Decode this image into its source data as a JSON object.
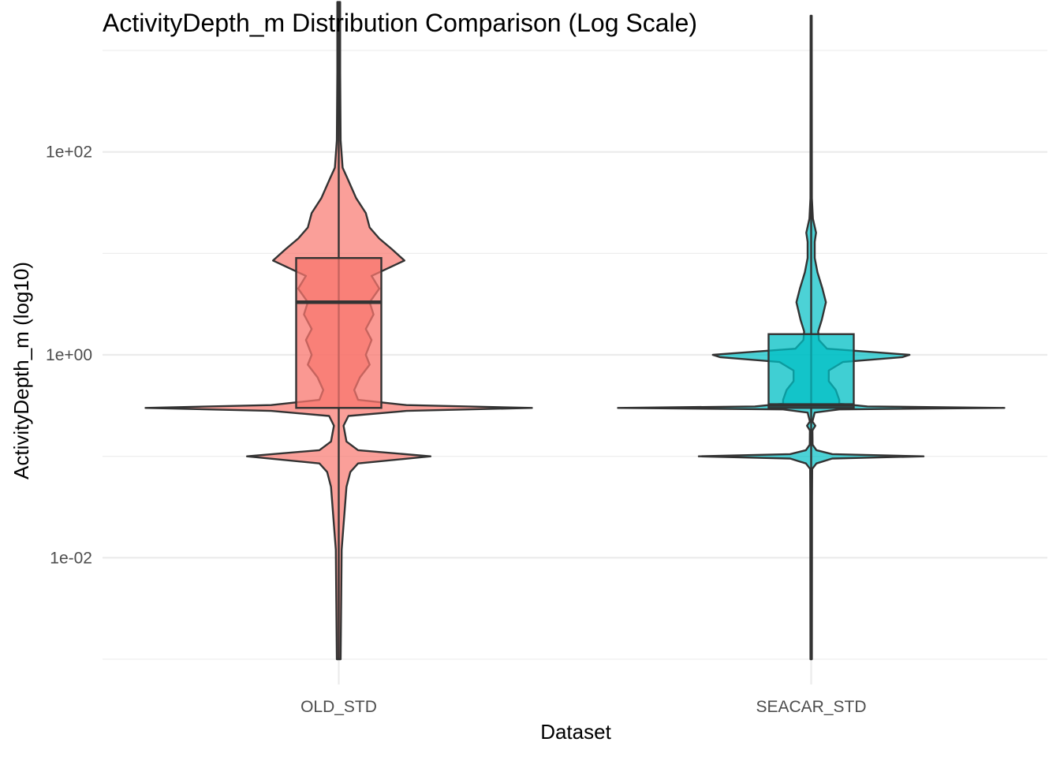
{
  "chart_data": {
    "type": "violin+box",
    "title": "ActivityDepth_m Distribution Comparison (Log Scale)",
    "xlabel": "Dataset",
    "ylabel": "ActivityDepth_m (log10)",
    "yscale": "log10",
    "ylim": [
      0.001,
      1000
    ],
    "yticks": [
      0.01,
      1,
      100
    ],
    "ytick_labels": [
      "1e-02",
      "1e+00",
      "1e+02"
    ],
    "grid": true,
    "legend": "none",
    "categories": [
      "OLD_STD",
      "SEACAR_STD"
    ],
    "colors": {
      "OLD_STD": "#F8766D",
      "SEACAR_STD": "#00BFC4"
    },
    "series": [
      {
        "name": "OLD_STD",
        "box": {
          "q1": 0.3,
          "median": 3.3,
          "q3": 9.0,
          "whisker_low": 0.001,
          "whisker_high": 3000
        },
        "violin": [
          [
            0.001,
            0.02
          ],
          [
            0.012,
            0.03
          ],
          [
            0.05,
            0.08
          ],
          [
            0.07,
            0.12
          ],
          [
            0.085,
            0.2
          ],
          [
            0.1,
            0.95
          ],
          [
            0.115,
            0.2
          ],
          [
            0.14,
            0.08
          ],
          [
            0.2,
            0.05
          ],
          [
            0.25,
            0.1
          ],
          [
            0.28,
            0.7
          ],
          [
            0.3,
            2.0
          ],
          [
            0.32,
            0.7
          ],
          [
            0.36,
            0.2
          ],
          [
            0.45,
            0.16
          ],
          [
            0.6,
            0.22
          ],
          [
            0.8,
            0.32
          ],
          [
            1.0,
            0.28
          ],
          [
            1.4,
            0.34
          ],
          [
            1.8,
            0.28
          ],
          [
            2.5,
            0.36
          ],
          [
            3.3,
            0.32
          ],
          [
            4.5,
            0.42
          ],
          [
            6.0,
            0.34
          ],
          [
            8.5,
            0.68
          ],
          [
            11,
            0.55
          ],
          [
            14,
            0.42
          ],
          [
            18,
            0.32
          ],
          [
            25,
            0.28
          ],
          [
            35,
            0.18
          ],
          [
            55,
            0.09
          ],
          [
            70,
            0.04
          ],
          [
            130,
            0.02
          ],
          [
            600,
            0.015
          ],
          [
            3000,
            0.015
          ]
        ]
      },
      {
        "name": "SEACAR_STD",
        "box": {
          "q1": 0.3,
          "median": 0.32,
          "q3": 1.6,
          "whisker_low": 0.001,
          "whisker_high": 2200
        },
        "violin": [
          [
            0.001,
            0.02
          ],
          [
            0.04,
            0.025
          ],
          [
            0.075,
            0.03
          ],
          [
            0.085,
            0.15
          ],
          [
            0.095,
            0.6
          ],
          [
            0.1,
            3.2
          ],
          [
            0.105,
            0.6
          ],
          [
            0.115,
            0.15
          ],
          [
            0.13,
            0.04
          ],
          [
            0.18,
            0.035
          ],
          [
            0.2,
            0.12
          ],
          [
            0.22,
            0.035
          ],
          [
            0.27,
            0.1
          ],
          [
            0.29,
            0.8
          ],
          [
            0.3,
            5.5
          ],
          [
            0.31,
            1.6
          ],
          [
            0.33,
            0.8
          ],
          [
            0.36,
            0.8
          ],
          [
            0.45,
            0.7
          ],
          [
            0.55,
            0.5
          ],
          [
            0.7,
            0.5
          ],
          [
            0.85,
            0.9
          ],
          [
            0.95,
            2.6
          ],
          [
            1.0,
            2.8
          ],
          [
            1.05,
            2.0
          ],
          [
            1.15,
            0.45
          ],
          [
            1.4,
            0.22
          ],
          [
            1.7,
            0.2
          ],
          [
            2.2,
            0.3
          ],
          [
            3.3,
            0.42
          ],
          [
            4.5,
            0.32
          ],
          [
            6.5,
            0.18
          ],
          [
            9,
            0.1
          ],
          [
            13,
            0.1
          ],
          [
            16,
            0.14
          ],
          [
            22,
            0.05
          ],
          [
            35,
            0.02
          ],
          [
            2200,
            0.015
          ]
        ]
      }
    ]
  }
}
